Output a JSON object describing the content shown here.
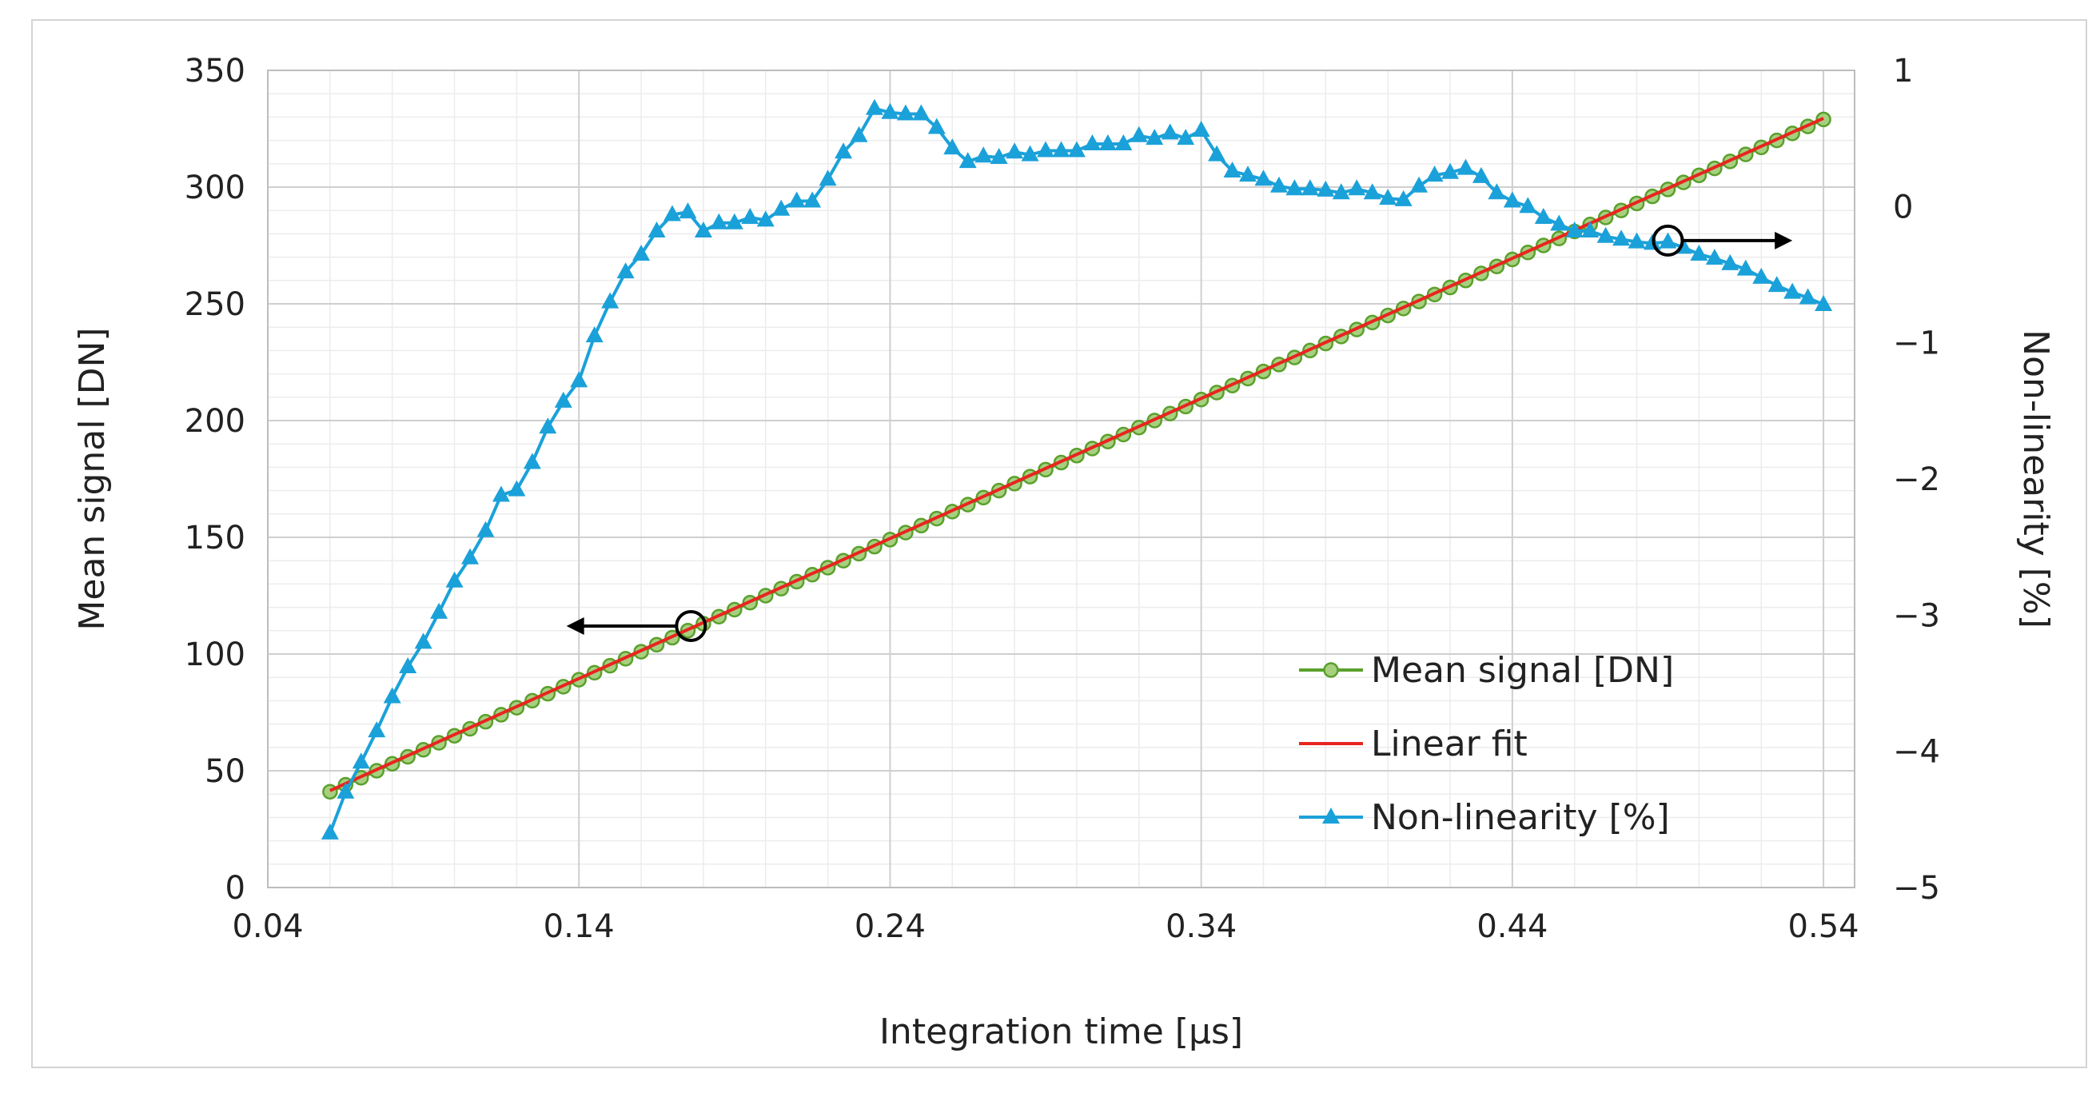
{
  "chart_data": {
    "type": "line",
    "title": "",
    "xlabel": "Integration time [µs]",
    "ylabel": "Mean signal [DN]",
    "y2label": "Non-linearity [%]",
    "xlim": [
      0.04,
      0.55
    ],
    "ylim": [
      0,
      350
    ],
    "y2lim": [
      -5,
      1
    ],
    "x_ticks": [
      0.04,
      0.14,
      0.24,
      0.34,
      0.44,
      0.54
    ],
    "x_tick_labels": [
      "0.04",
      "0.14",
      "0.24",
      "0.34",
      "0.44",
      "0.54"
    ],
    "y_ticks": [
      0,
      50,
      100,
      150,
      200,
      250,
      300,
      350
    ],
    "y_tick_labels": [
      "0",
      "50",
      "100",
      "150",
      "200",
      "250",
      "300",
      "350"
    ],
    "y2_ticks": [
      -5,
      -4,
      -3,
      -2,
      -1,
      0,
      1
    ],
    "y2_tick_labels": [
      "−5",
      "−4",
      "−3",
      "−2",
      "−1",
      "0",
      "1"
    ],
    "grid": true,
    "legend_position": "bottom-right",
    "legend": [
      "Mean signal [DN]",
      "Linear fit",
      "Non-linearity [%]"
    ],
    "series": [
      {
        "name": "Mean signal [DN]",
        "axis": "left",
        "color": "#5aa02c",
        "marker": "circle",
        "x_start": 0.06,
        "x_step": 0.005,
        "count": 97,
        "y_start": 41.0,
        "y_step": 3.0
      },
      {
        "name": "Linear fit",
        "axis": "left",
        "color": "#e8251f",
        "x": [
          0.06,
          0.54
        ],
        "y": [
          41.5,
          329.5
        ]
      },
      {
        "name": "Non-linearity [%]",
        "axis": "right",
        "color": "#1ba1d9",
        "marker": "triangle",
        "x": [
          0.06,
          0.065,
          0.07,
          0.075,
          0.08,
          0.085,
          0.09,
          0.095,
          0.1,
          0.105,
          0.11,
          0.115,
          0.12,
          0.125,
          0.13,
          0.135,
          0.14,
          0.145,
          0.15,
          0.155,
          0.16,
          0.165,
          0.17,
          0.175,
          0.18,
          0.185,
          0.19,
          0.195,
          0.2,
          0.205,
          0.21,
          0.215,
          0.22,
          0.225,
          0.23,
          0.235,
          0.24,
          0.245,
          0.25,
          0.255,
          0.26,
          0.265,
          0.27,
          0.275,
          0.28,
          0.285,
          0.29,
          0.295,
          0.3,
          0.305,
          0.31,
          0.315,
          0.32,
          0.325,
          0.33,
          0.335,
          0.34,
          0.345,
          0.35,
          0.355,
          0.36,
          0.365,
          0.37,
          0.375,
          0.38,
          0.385,
          0.39,
          0.395,
          0.4,
          0.405,
          0.41,
          0.415,
          0.42,
          0.425,
          0.43,
          0.435,
          0.44,
          0.445,
          0.45,
          0.455,
          0.46,
          0.465,
          0.47,
          0.475,
          0.48,
          0.485,
          0.49,
          0.495,
          0.5,
          0.505,
          0.51,
          0.515,
          0.52,
          0.525,
          0.53,
          0.535,
          0.54
        ],
        "y": [
          -4.6,
          -4.3,
          -4.08,
          -3.85,
          -3.6,
          -3.38,
          -3.2,
          -2.98,
          -2.75,
          -2.58,
          -2.38,
          -2.12,
          -2.08,
          -1.88,
          -1.62,
          -1.43,
          -1.28,
          -0.95,
          -0.7,
          -0.48,
          -0.35,
          -0.18,
          -0.06,
          -0.04,
          -0.18,
          -0.12,
          -0.12,
          -0.08,
          -0.1,
          -0.02,
          0.04,
          0.04,
          0.2,
          0.4,
          0.52,
          0.72,
          0.69,
          0.68,
          0.68,
          0.58,
          0.43,
          0.33,
          0.37,
          0.36,
          0.4,
          0.38,
          0.41,
          0.41,
          0.41,
          0.46,
          0.46,
          0.46,
          0.52,
          0.5,
          0.54,
          0.5,
          0.56,
          0.38,
          0.26,
          0.23,
          0.2,
          0.15,
          0.13,
          0.13,
          0.12,
          0.1,
          0.13,
          0.1,
          0.06,
          0.05,
          0.15,
          0.23,
          0.25,
          0.28,
          0.22,
          0.1,
          0.04,
          0.0,
          -0.08,
          -0.13,
          -0.18,
          -0.18,
          -0.22,
          -0.24,
          -0.26,
          -0.27,
          -0.26,
          -0.3,
          -0.35,
          -0.38,
          -0.42,
          -0.46,
          -0.52,
          -0.58,
          -0.63,
          -0.67,
          -0.72
        ]
      }
    ],
    "annotations": [
      {
        "label": "left-axis-indicator",
        "x": 0.176,
        "y": 112,
        "axis": "left",
        "direction": "left",
        "length": 0.04
      },
      {
        "label": "right-axis-indicator",
        "x": 0.49,
        "y": -0.25,
        "axis": "right",
        "direction": "right",
        "length": 0.04
      }
    ]
  }
}
